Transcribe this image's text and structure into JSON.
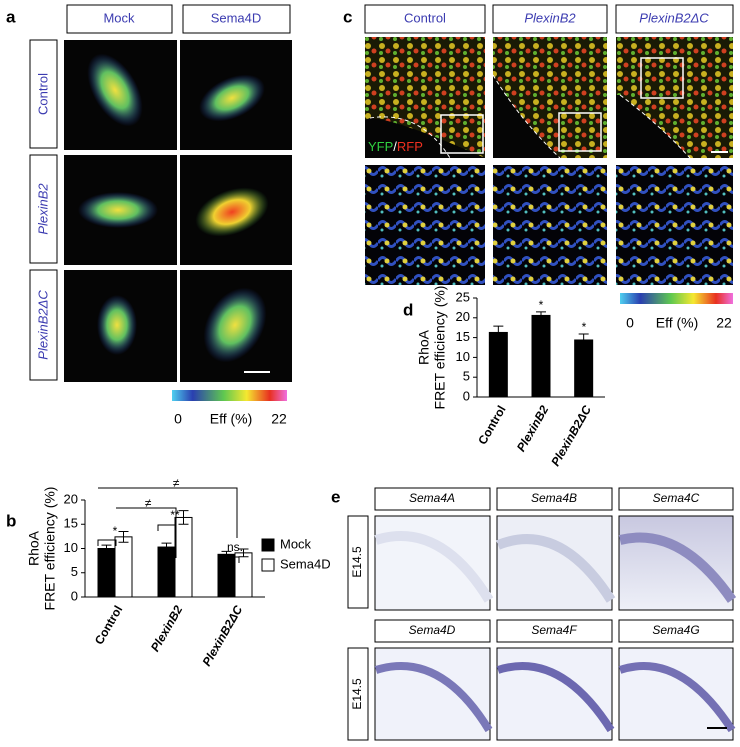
{
  "panel_a": {
    "letter": "a",
    "columns": [
      "Mock",
      "Sema4D"
    ],
    "rows": [
      "Control",
      "PlexinB2",
      "PlexinB2ΔC"
    ],
    "colorbar": {
      "min": "0",
      "label": "Eff (%)",
      "max": "22"
    }
  },
  "panel_b": {
    "letter": "b"
  },
  "panel_c": {
    "letter": "c",
    "columns": [
      "Control",
      "PlexinB2",
      "PlexinB2ΔC"
    ],
    "channels": [
      "YFP",
      "/",
      "RFP"
    ],
    "colorbar": {
      "min": "0",
      "label": "Eff (%)",
      "max": "22"
    }
  },
  "panel_d": {
    "letter": "d"
  },
  "panel_e": {
    "letter": "e",
    "genes": [
      "Sema4A",
      "Sema4B",
      "Sema4C",
      "Sema4D",
      "Sema4F",
      "Sema4G"
    ],
    "stages": [
      "E14.5",
      "E14.5"
    ]
  },
  "chart_data": [
    {
      "type": "bar",
      "y_label": [
        "RhoA",
        "FRET efficiency (%)"
      ],
      "categories": [
        "Control",
        "PlexinB2",
        "PlexinB2ΔC"
      ],
      "series": [
        {
          "name": "Mock",
          "color": "#000000",
          "values": [
            10,
            10.3,
            8.8
          ],
          "errors": [
            0.7,
            0.8,
            0.6
          ]
        },
        {
          "name": "Sema4D",
          "color": "#ffffff",
          "values": [
            12.4,
            16.4,
            9.1
          ],
          "errors": [
            1.1,
            1.4,
            0.8
          ]
        }
      ],
      "ylim": [
        0,
        20
      ],
      "yticks": [
        0,
        5,
        10,
        15,
        20
      ],
      "legend": "right",
      "annotations": [
        "*",
        "**",
        "ns.",
        "≠",
        "≠"
      ]
    },
    {
      "type": "bar",
      "y_label": [
        "RhoA",
        "FRET efficiency (%)"
      ],
      "categories": [
        "Control",
        "PlexinB2",
        "PlexinB2ΔC"
      ],
      "values": [
        16.3,
        20.6,
        14.4
      ],
      "errors": [
        1.6,
        0.9,
        1.5
      ],
      "color": "#000000",
      "ylim": [
        0,
        25
      ],
      "yticks": [
        0,
        5,
        10,
        15,
        20,
        25
      ],
      "annotations": [
        "*",
        "*"
      ]
    }
  ]
}
